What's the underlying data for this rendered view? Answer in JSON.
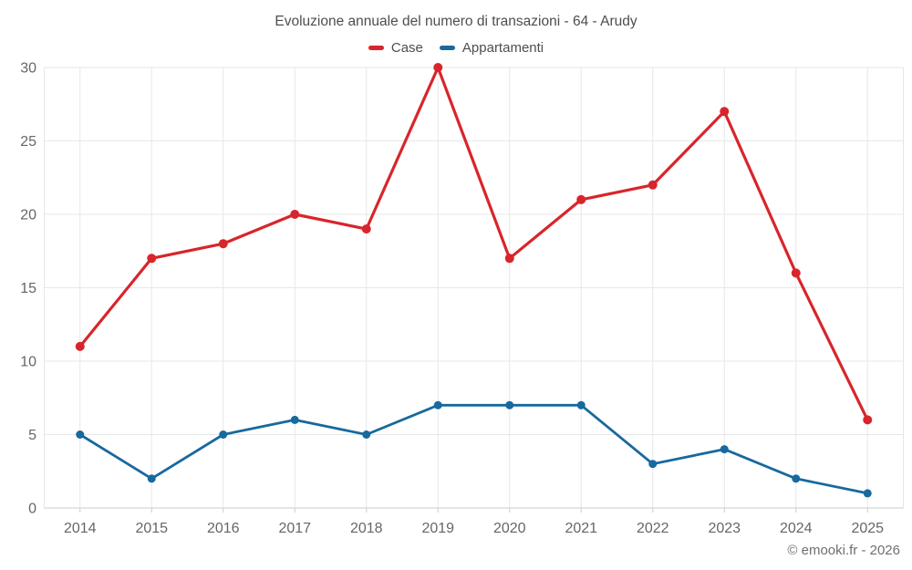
{
  "chart_data": {
    "type": "line",
    "title": "Evoluzione annuale del numero di transazioni - 64 - Arudy",
    "categories": [
      "2014",
      "2015",
      "2016",
      "2017",
      "2018",
      "2019",
      "2020",
      "2021",
      "2022",
      "2023",
      "2024",
      "2025"
    ],
    "series": [
      {
        "name": "Case",
        "color": "#d8252b",
        "values": [
          11,
          17,
          18,
          20,
          19,
          30,
          17,
          21,
          22,
          27,
          16,
          6
        ]
      },
      {
        "name": "Appartamenti",
        "color": "#17699e",
        "values": [
          5,
          2,
          5,
          6,
          5,
          7,
          7,
          7,
          3,
          4,
          2,
          1
        ]
      }
    ],
    "xlabel": "",
    "ylabel": "",
    "ylim": [
      0,
      30
    ],
    "yticks": [
      0,
      5,
      10,
      15,
      20,
      25,
      30
    ],
    "grid": true,
    "legend_position": "top"
  },
  "footer": {
    "text": "© emooki.fr - 2026"
  },
  "colors": {
    "background": "#ffffff",
    "grid": "#e7e7e7",
    "axis": "#cccccc",
    "axis_label": "#666666",
    "title_text": "#4e4e4e",
    "footer_text": "#6f6f6f"
  }
}
